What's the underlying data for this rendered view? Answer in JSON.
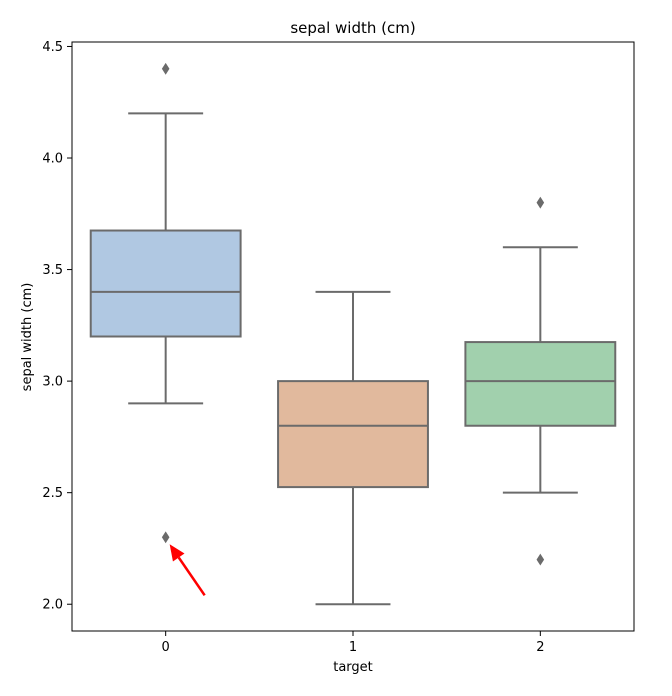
{
  "chart_data": {
    "type": "box",
    "title": "sepal width (cm)",
    "xlabel": "target",
    "ylabel": "sepal width (cm)",
    "categories": [
      "0",
      "1",
      "2"
    ],
    "ylim": [
      1.88,
      4.52
    ],
    "yticks": [
      2.0,
      2.5,
      3.0,
      3.5,
      4.0,
      4.5
    ],
    "ytick_labels": [
      "2.0",
      "2.5",
      "3.0",
      "3.5",
      "4.0",
      "4.5"
    ],
    "grid": false,
    "boxes": [
      {
        "category": "0",
        "whisker_low": 2.9,
        "q1": 3.2,
        "median": 3.4,
        "q3": 3.675,
        "whisker_high": 4.2,
        "outliers": [
          4.4,
          2.3
        ],
        "color": "#b0c8e2"
      },
      {
        "category": "1",
        "whisker_low": 2.0,
        "q1": 2.525,
        "median": 2.8,
        "q3": 3.0,
        "whisker_high": 3.4,
        "outliers": [],
        "color": "#e1b99d"
      },
      {
        "category": "2",
        "whisker_low": 2.5,
        "q1": 2.8,
        "median": 3.0,
        "q3": 3.175,
        "whisker_high": 3.6,
        "outliers": [
          3.8,
          2.2
        ],
        "color": "#a1d0ad"
      }
    ],
    "annotations": [
      {
        "type": "arrow",
        "color": "#ff0000",
        "points_to": {
          "category": "0",
          "value": 2.3
        }
      }
    ]
  }
}
